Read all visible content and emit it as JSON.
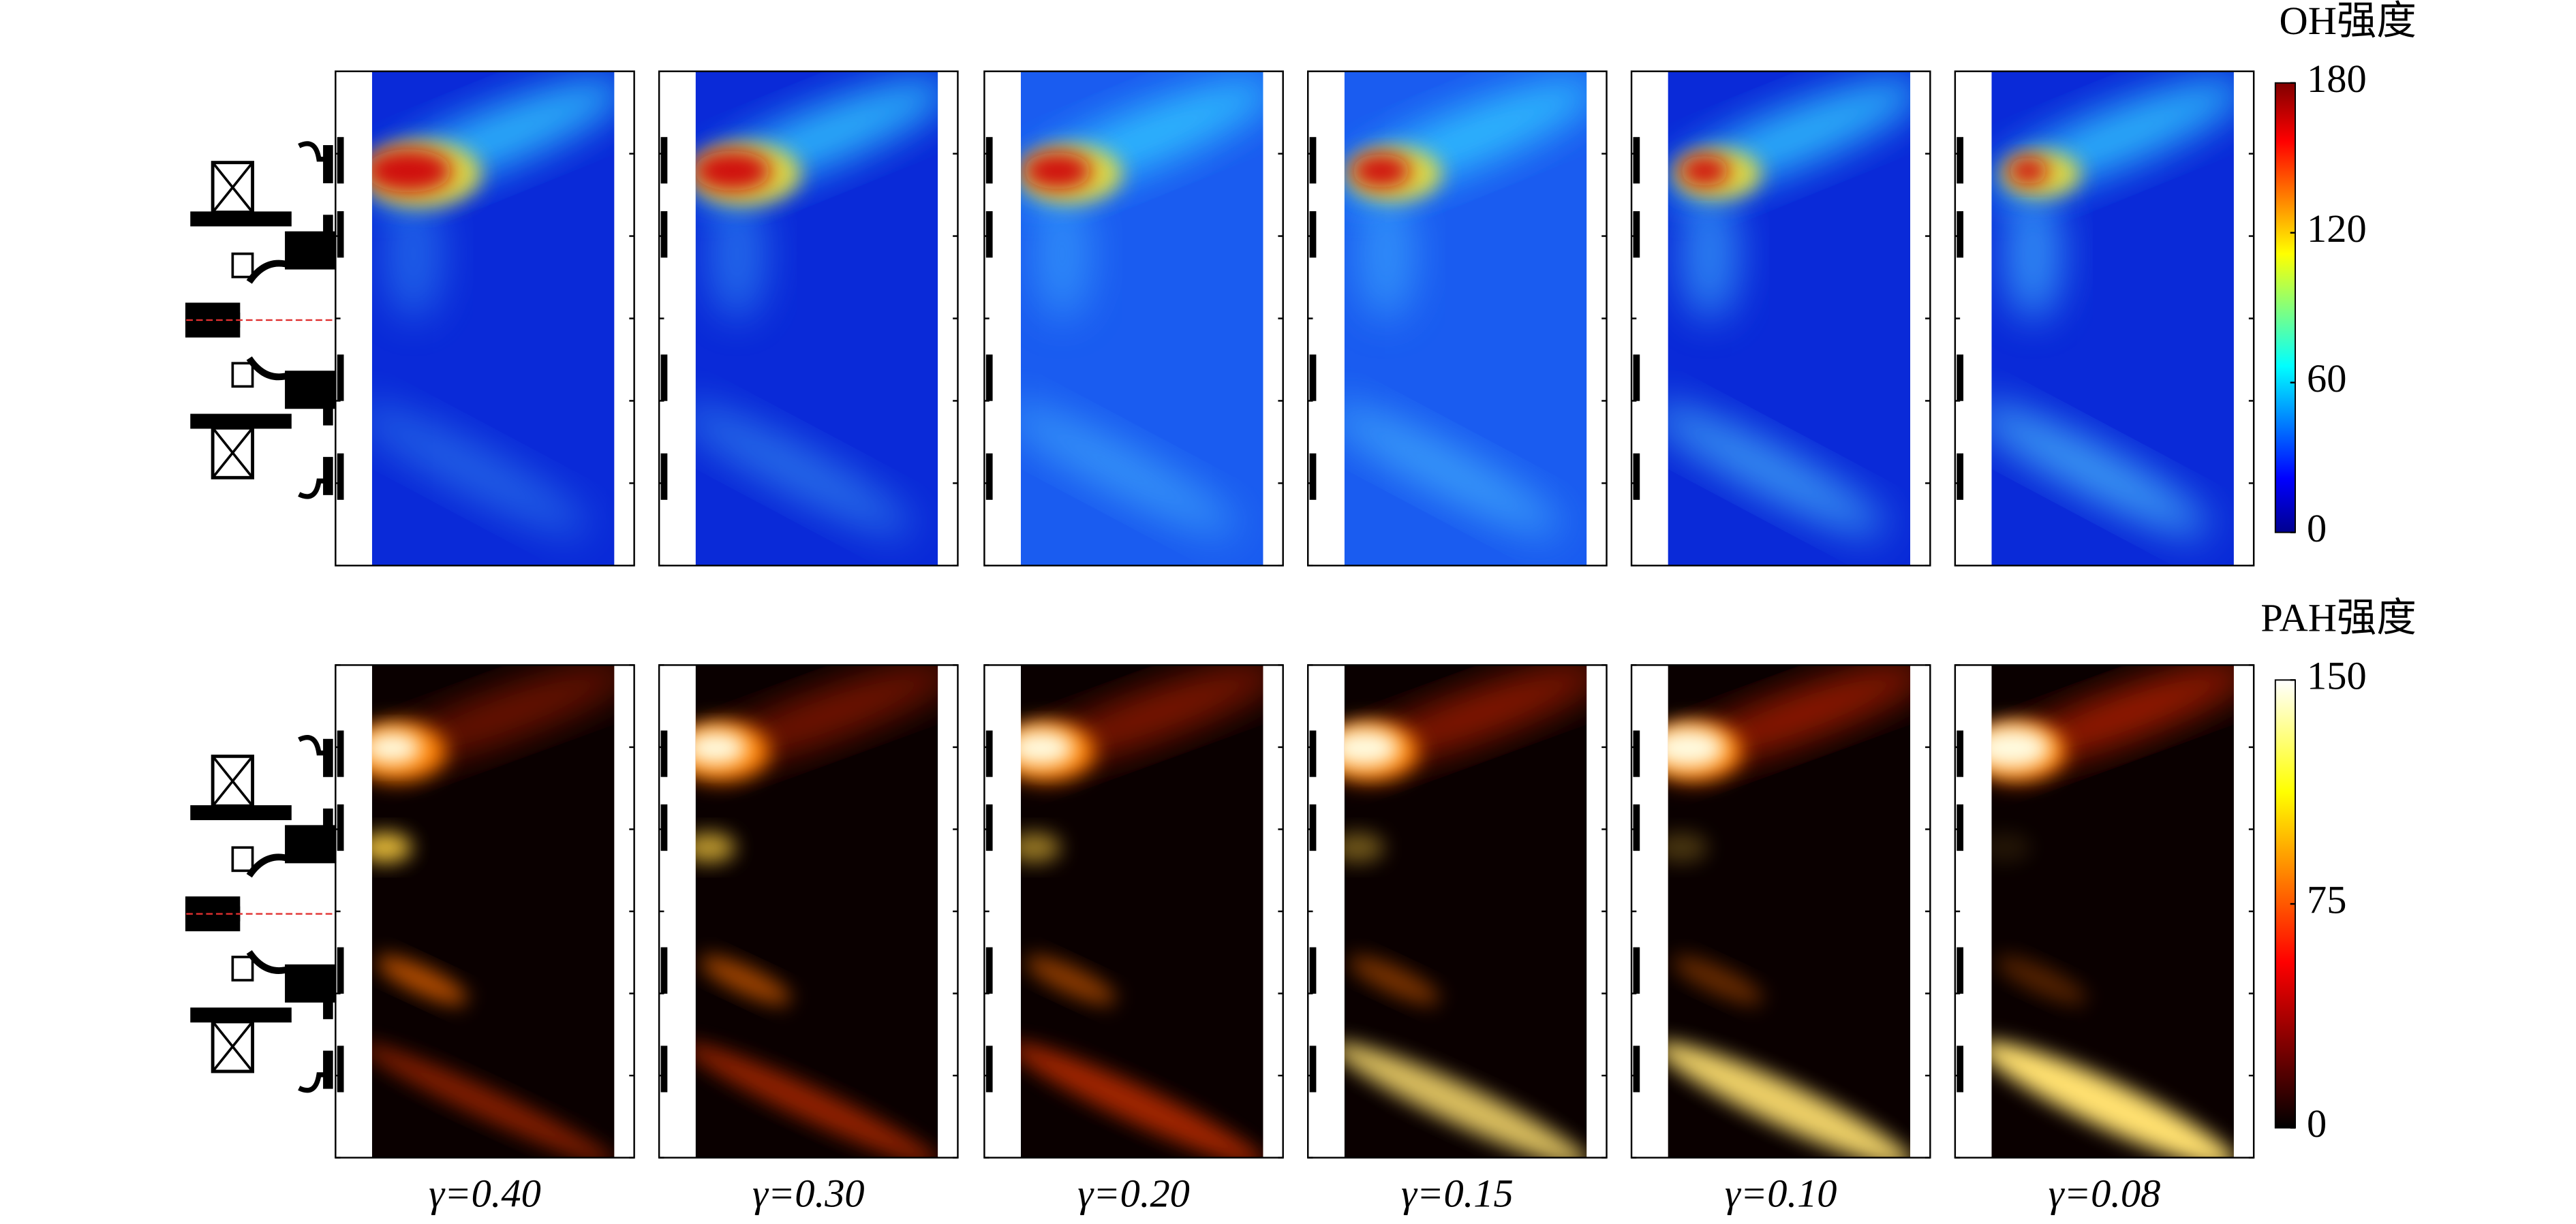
{
  "panels": [
    "γ=0.40",
    "γ=0.30",
    "γ=0.20",
    "γ=0.15",
    "γ=0.10",
    "γ=0.08"
  ],
  "colorbars": [
    {
      "title": "OH强度",
      "lim": [
        0,
        180
      ],
      "ticks": [
        0,
        60,
        120,
        180
      ],
      "colormap": "jet"
    },
    {
      "title": "PAH强度",
      "lim": [
        0,
        150
      ],
      "ticks": [
        0,
        75,
        150
      ],
      "colormap": "hot"
    }
  ]
}
